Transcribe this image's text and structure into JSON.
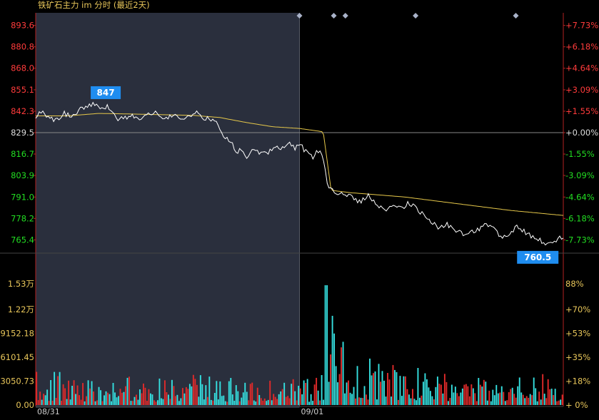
{
  "title": "铁矿石主力 im 分时 (最近2天)",
  "colors": {
    "background": "#000000",
    "shade": "#2a2f3d",
    "grid": "#b22222",
    "price_line": "#ffffff",
    "avg_line": "#e6c84a",
    "up": "#ff3b3b",
    "down": "#22dd22",
    "neutral": "#dddddd",
    "vol_axis": "#e8c65a",
    "vol_up": "#e02a2a",
    "vol_down": "#35e0e0",
    "badge_bg": "#1f8df0",
    "badge_text": "#ffffff",
    "marker": "#a9b2c8"
  },
  "chart_data": [
    {
      "type": "line",
      "name": "price-panel",
      "ylim": [
        763.0,
        896.0
      ],
      "baseline": 829.5,
      "y_ticks": [
        {
          "value": 893.6,
          "label": "893.6",
          "pct": "+7.73%",
          "dir": "up"
        },
        {
          "value": 880.8,
          "label": "880.8",
          "pct": "+6.18%",
          "dir": "up"
        },
        {
          "value": 868.0,
          "label": "868.0",
          "pct": "+4.64%",
          "dir": "up"
        },
        {
          "value": 855.1,
          "label": "855.1",
          "pct": "+3.09%",
          "dir": "up"
        },
        {
          "value": 842.3,
          "label": "842.3",
          "pct": "+1.55%",
          "dir": "up"
        },
        {
          "value": 829.5,
          "label": "829.5",
          "pct": "+0.00%",
          "dir": "flat"
        },
        {
          "value": 816.7,
          "label": "816.7",
          "pct": "-1.55%",
          "dir": "down"
        },
        {
          "value": 803.9,
          "label": "803.9",
          "pct": "-3.09%",
          "dir": "down"
        },
        {
          "value": 791.0,
          "label": "791.0",
          "pct": "-4.64%",
          "dir": "down"
        },
        {
          "value": 778.2,
          "label": "778.2",
          "pct": "-6.18%",
          "dir": "down"
        },
        {
          "value": 765.4,
          "label": "765.4",
          "pct": "-7.73%",
          "dir": "down"
        }
      ],
      "x_labels": [
        {
          "label": "08/31",
          "t": 0.0
        },
        {
          "label": "09/01",
          "t": 0.5
        }
      ],
      "session_split": 0.5,
      "event_markers": [
        0.5,
        0.565,
        0.587,
        0.72,
        0.91
      ],
      "annotations": [
        {
          "text": "847",
          "t": 0.107,
          "value": 847.0,
          "kind": "high"
        },
        {
          "text": "760.5",
          "t": 0.98,
          "value": 760.5,
          "kind": "low"
        }
      ],
      "price_anchors": [
        [
          0.0,
          839.5
        ],
        [
          0.012,
          841.5
        ],
        [
          0.025,
          838.0
        ],
        [
          0.04,
          837.0
        ],
        [
          0.055,
          841.0
        ],
        [
          0.07,
          838.5
        ],
        [
          0.085,
          843.5
        ],
        [
          0.1,
          846.0
        ],
        [
          0.113,
          847.0
        ],
        [
          0.125,
          843.0
        ],
        [
          0.135,
          845.5
        ],
        [
          0.145,
          841.0
        ],
        [
          0.155,
          836.5
        ],
        [
          0.17,
          838.5
        ],
        [
          0.185,
          839.5
        ],
        [
          0.2,
          837.5
        ],
        [
          0.215,
          840.5
        ],
        [
          0.23,
          841.5
        ],
        [
          0.245,
          838.0
        ],
        [
          0.26,
          840.0
        ],
        [
          0.275,
          837.0
        ],
        [
          0.29,
          839.5
        ],
        [
          0.305,
          841.0
        ],
        [
          0.32,
          837.5
        ],
        [
          0.335,
          838.0
        ],
        [
          0.345,
          835.0
        ],
        [
          0.352,
          830.0
        ],
        [
          0.36,
          827.0
        ],
        [
          0.37,
          824.0
        ],
        [
          0.38,
          818.0
        ],
        [
          0.39,
          819.0
        ],
        [
          0.4,
          815.0
        ],
        [
          0.412,
          820.0
        ],
        [
          0.425,
          816.0
        ],
        [
          0.44,
          818.0
        ],
        [
          0.455,
          821.0
        ],
        [
          0.465,
          819.0
        ],
        [
          0.48,
          824.0
        ],
        [
          0.492,
          820.0
        ],
        [
          0.5,
          823.0
        ],
        [
          0.51,
          819.0
        ],
        [
          0.518,
          817.0
        ],
        [
          0.525,
          815.0
        ],
        [
          0.532,
          819.0
        ],
        [
          0.538,
          818.0
        ],
        [
          0.545,
          813.0
        ],
        [
          0.55,
          804.0
        ],
        [
          0.555,
          797.0
        ],
        [
          0.57,
          793.5
        ],
        [
          0.585,
          794.0
        ],
        [
          0.6,
          790.0
        ],
        [
          0.615,
          788.0
        ],
        [
          0.63,
          792.5
        ],
        [
          0.645,
          786.0
        ],
        [
          0.66,
          783.0
        ],
        [
          0.675,
          786.0
        ],
        [
          0.69,
          784.0
        ],
        [
          0.705,
          787.0
        ],
        [
          0.72,
          785.0
        ],
        [
          0.735,
          780.0
        ],
        [
          0.75,
          776.0
        ],
        [
          0.765,
          772.0
        ],
        [
          0.78,
          775.0
        ],
        [
          0.795,
          771.0
        ],
        [
          0.81,
          768.5
        ],
        [
          0.825,
          770.0
        ],
        [
          0.84,
          772.0
        ],
        [
          0.855,
          774.5
        ],
        [
          0.87,
          771.0
        ],
        [
          0.885,
          767.0
        ],
        [
          0.9,
          770.0
        ],
        [
          0.915,
          773.5
        ],
        [
          0.93,
          769.0
        ],
        [
          0.945,
          767.5
        ],
        [
          0.96,
          764.0
        ],
        [
          0.975,
          763.5
        ],
        [
          0.99,
          766.0
        ],
        [
          1.0,
          767.0
        ]
      ],
      "avg_anchors": [
        [
          0.0,
          839.5
        ],
        [
          0.06,
          839.5
        ],
        [
          0.12,
          841.0
        ],
        [
          0.2,
          840.5
        ],
        [
          0.3,
          839.8
        ],
        [
          0.35,
          838.5
        ],
        [
          0.4,
          835.5
        ],
        [
          0.45,
          833.0
        ],
        [
          0.5,
          832.0
        ],
        [
          0.545,
          830.0
        ],
        [
          0.56,
          795.0
        ],
        [
          0.6,
          793.5
        ],
        [
          0.7,
          791.0
        ],
        [
          0.8,
          787.0
        ],
        [
          0.9,
          783.0
        ],
        [
          1.0,
          780.0
        ]
      ]
    },
    {
      "type": "bar",
      "name": "volume-panel",
      "ylim": [
        0,
        15300
      ],
      "y_ticks": [
        {
          "value": 15300,
          "label": "1.53万",
          "pct": "88%"
        },
        {
          "value": 12200,
          "label": "1.22万",
          "pct": "+70%"
        },
        {
          "value": 9152.18,
          "label": "9152.18",
          "pct": "+53%"
        },
        {
          "value": 6101.45,
          "label": "6101.45",
          "pct": "+35%"
        },
        {
          "value": 3050.73,
          "label": "3050.73",
          "pct": "+18%"
        },
        {
          "value": 0,
          "label": "0.00",
          "pct": "+ 0%"
        }
      ],
      "bar_count": 296,
      "volume_envelope": [
        [
          0.0,
          4200
        ],
        [
          0.1,
          3800
        ],
        [
          0.2,
          3500
        ],
        [
          0.3,
          3700
        ],
        [
          0.4,
          3300
        ],
        [
          0.5,
          3400
        ],
        [
          0.545,
          3600
        ],
        [
          0.55,
          15300
        ],
        [
          0.56,
          12500
        ],
        [
          0.58,
          8500
        ],
        [
          0.62,
          6000
        ],
        [
          0.7,
          4600
        ],
        [
          0.8,
          4000
        ],
        [
          0.9,
          3900
        ],
        [
          1.0,
          3600
        ]
      ]
    }
  ]
}
